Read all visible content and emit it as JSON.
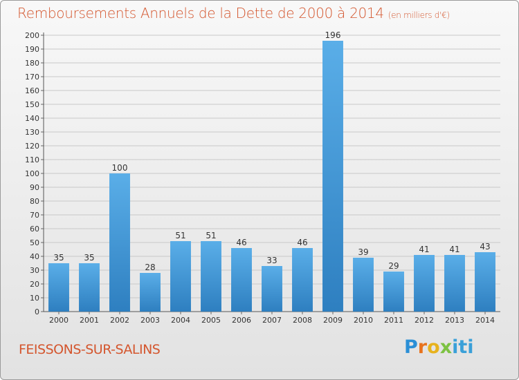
{
  "header": {
    "title": "Remboursements Annuels de la Dette de 2000 à 2014",
    "subtitle": "(en milliers d'€)"
  },
  "footer": {
    "place": "FEISSONS-SUR-SALINS",
    "logo": "Proxiti"
  },
  "colors": {
    "title": "#d4562e",
    "bar_light": "#5aaee8",
    "bar_dark": "#2e7fc0"
  },
  "chart_data": {
    "type": "bar",
    "title": "Remboursements Annuels de la Dette de 2000 à 2014",
    "subtitle": "(en milliers d'€)",
    "categories": [
      "2000",
      "2001",
      "2002",
      "2003",
      "2004",
      "2005",
      "2006",
      "2007",
      "2008",
      "2009",
      "2010",
      "2011",
      "2012",
      "2013",
      "2014"
    ],
    "values": [
      35,
      35,
      100,
      28,
      51,
      51,
      46,
      33,
      46,
      196,
      39,
      29,
      41,
      41,
      43
    ],
    "ylim": [
      0,
      200
    ],
    "ytick_step": 10,
    "grid": true,
    "data_labels": true,
    "xlabel": "",
    "ylabel": ""
  }
}
